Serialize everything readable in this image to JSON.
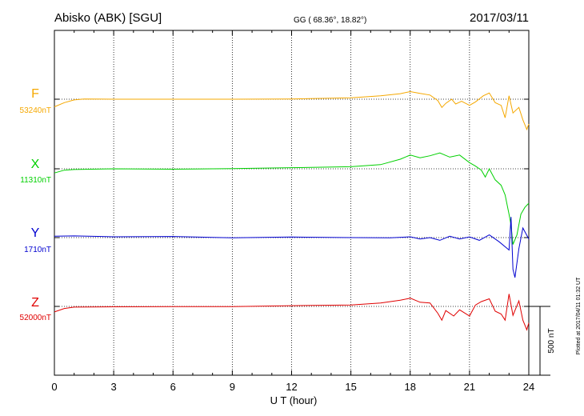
{
  "header": {
    "station": "Abisko (ABK)  [SGU]",
    "coords": "GG ( 68.36°,  18.82°)",
    "date": "2017/03/11"
  },
  "footer": {
    "plotted": "Plotted at 2017/04/11 01:32 UT",
    "scale": "500 nT"
  },
  "colors": {
    "F": "#f5a800",
    "X": "#00d000",
    "Y": "#0000d0",
    "Z": "#e00000"
  },
  "chart_data": {
    "type": "line",
    "xlabel": "U T (hour)",
    "xlim": [
      0,
      24
    ],
    "x_ticks": [
      "0",
      "3",
      "6",
      "9",
      "12",
      "15",
      "18",
      "21",
      "24"
    ],
    "scale_bar_nT": 500,
    "series": [
      {
        "name": "F",
        "baseline_label": "53240nT",
        "baseline": 53240,
        "points": [
          [
            0,
            53185
          ],
          [
            0.5,
            53215
          ],
          [
            1,
            53235
          ],
          [
            1.5,
            53242
          ],
          [
            3,
            53240
          ],
          [
            6,
            53240
          ],
          [
            9,
            53240
          ],
          [
            12,
            53242
          ],
          [
            15,
            53250
          ],
          [
            16.5,
            53265
          ],
          [
            17.5,
            53280
          ],
          [
            18,
            53295
          ],
          [
            18.5,
            53282
          ],
          [
            19,
            53270
          ],
          [
            19.4,
            53230
          ],
          [
            19.6,
            53180
          ],
          [
            19.8,
            53210
          ],
          [
            20.1,
            53240
          ],
          [
            20.3,
            53205
          ],
          [
            20.6,
            53225
          ],
          [
            21,
            53195
          ],
          [
            21.3,
            53220
          ],
          [
            21.7,
            53265
          ],
          [
            22,
            53285
          ],
          [
            22.3,
            53215
          ],
          [
            22.6,
            53195
          ],
          [
            22.8,
            53105
          ],
          [
            23,
            53265
          ],
          [
            23.2,
            53140
          ],
          [
            23.5,
            53180
          ],
          [
            23.7,
            53090
          ],
          [
            23.9,
            53020
          ],
          [
            24,
            53060
          ]
        ]
      },
      {
        "name": "X",
        "baseline_label": "11310nT",
        "baseline": 11310,
        "points": [
          [
            0,
            11280
          ],
          [
            0.5,
            11300
          ],
          [
            1,
            11305
          ],
          [
            3,
            11310
          ],
          [
            6,
            11307
          ],
          [
            9,
            11312
          ],
          [
            12,
            11318
          ],
          [
            15,
            11325
          ],
          [
            16.5,
            11340
          ],
          [
            17.5,
            11380
          ],
          [
            18,
            11410
          ],
          [
            18.5,
            11390
          ],
          [
            19,
            11405
          ],
          [
            19.5,
            11425
          ],
          [
            20,
            11395
          ],
          [
            20.5,
            11410
          ],
          [
            21,
            11355
          ],
          [
            21.3,
            11330
          ],
          [
            21.6,
            11300
          ],
          [
            21.8,
            11250
          ],
          [
            22,
            11310
          ],
          [
            22.3,
            11230
          ],
          [
            22.6,
            11190
          ],
          [
            22.8,
            11120
          ],
          [
            23,
            10980
          ],
          [
            23.1,
            10900
          ],
          [
            23.2,
            10760
          ],
          [
            23.4,
            10830
          ],
          [
            23.6,
            10980
          ],
          [
            23.8,
            11030
          ],
          [
            24,
            11060
          ]
        ]
      },
      {
        "name": "Y",
        "baseline_label": "1710nT",
        "baseline": 1710,
        "points": [
          [
            0,
            1720
          ],
          [
            1,
            1722
          ],
          [
            3,
            1716
          ],
          [
            6,
            1718
          ],
          [
            8,
            1712
          ],
          [
            9,
            1708
          ],
          [
            12,
            1714
          ],
          [
            15,
            1710
          ],
          [
            17,
            1708
          ],
          [
            18,
            1716
          ],
          [
            18.5,
            1700
          ],
          [
            19,
            1710
          ],
          [
            19.5,
            1690
          ],
          [
            20,
            1720
          ],
          [
            20.5,
            1700
          ],
          [
            21,
            1715
          ],
          [
            21.5,
            1690
          ],
          [
            22,
            1730
          ],
          [
            22.5,
            1680
          ],
          [
            23,
            1620
          ],
          [
            23.1,
            1860
          ],
          [
            23.2,
            1480
          ],
          [
            23.3,
            1420
          ],
          [
            23.5,
            1630
          ],
          [
            23.7,
            1780
          ],
          [
            24,
            1700
          ]
        ]
      },
      {
        "name": "Z",
        "baseline_label": "52000nT",
        "baseline": 52000,
        "points": [
          [
            0,
            51960
          ],
          [
            0.5,
            51985
          ],
          [
            1,
            51995
          ],
          [
            3,
            51997
          ],
          [
            6,
            51999
          ],
          [
            9,
            51998
          ],
          [
            12,
            52005
          ],
          [
            15,
            52010
          ],
          [
            16.5,
            52025
          ],
          [
            17.5,
            52045
          ],
          [
            18,
            52060
          ],
          [
            18.5,
            52030
          ],
          [
            19,
            52025
          ],
          [
            19.4,
            51950
          ],
          [
            19.6,
            51900
          ],
          [
            19.8,
            51970
          ],
          [
            20.2,
            51930
          ],
          [
            20.5,
            51975
          ],
          [
            21,
            51930
          ],
          [
            21.3,
            52010
          ],
          [
            21.6,
            52035
          ],
          [
            22,
            52055
          ],
          [
            22.3,
            51965
          ],
          [
            22.6,
            51945
          ],
          [
            22.8,
            51900
          ],
          [
            23,
            52090
          ],
          [
            23.2,
            51935
          ],
          [
            23.5,
            52040
          ],
          [
            23.7,
            51900
          ],
          [
            23.9,
            51830
          ],
          [
            24,
            51880
          ]
        ]
      }
    ]
  }
}
